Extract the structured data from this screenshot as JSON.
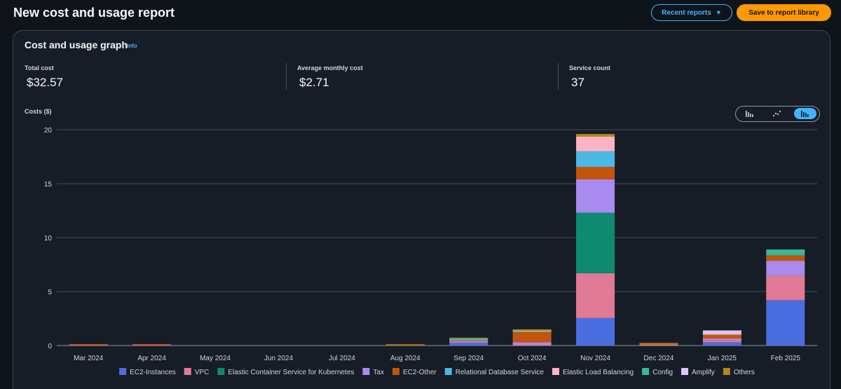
{
  "header": {
    "title": "New cost and usage report",
    "recent_reports_label": "Recent reports",
    "save_label": "Save to report library"
  },
  "card": {
    "title": "Cost and usage graph",
    "info_label": "Info",
    "metrics": [
      {
        "label": "Total cost",
        "value": "$32.57"
      },
      {
        "label": "Average monthly cost",
        "value": "$2.71"
      },
      {
        "label": "Service count",
        "value": "37"
      }
    ],
    "costs_label": "Costs ($)",
    "view_buttons": [
      {
        "name": "bar-chart-icon",
        "active": false
      },
      {
        "name": "line-chart-icon",
        "active": false
      },
      {
        "name": "stacked-bar-chart-icon",
        "active": true
      }
    ]
  },
  "chart_data": {
    "type": "bar",
    "stacked": true,
    "title": "",
    "xlabel": "",
    "ylabel": "Costs ($)",
    "ylim": [
      0,
      20
    ],
    "yticks": [
      0,
      5,
      10,
      15,
      20
    ],
    "grid": true,
    "legend_position": "bottom",
    "categories": [
      "Mar 2024",
      "Apr 2024",
      "May 2024",
      "Jun 2024",
      "Jul 2024",
      "Aug 2024",
      "Sep 2024",
      "Oct 2024",
      "Nov 2024",
      "Dec 2024",
      "Jan 2025",
      "Feb 2025"
    ],
    "series": [
      {
        "name": "EC2-Instances",
        "color": "#4a6ee0",
        "values": [
          0,
          0,
          0,
          0,
          0,
          0,
          0.25,
          0,
          2.55,
          0,
          0.3,
          4.2
        ]
      },
      {
        "name": "VPC",
        "color": "#e07a96",
        "values": [
          0.03,
          0.03,
          0,
          0,
          0,
          0,
          0.1,
          0.1,
          4.15,
          0.08,
          0.2,
          2.3
        ]
      },
      {
        "name": "Elastic Container Service for Kubernetes",
        "color": "#0e8a70",
        "values": [
          0,
          0,
          0,
          0,
          0,
          0,
          0,
          0,
          5.6,
          0,
          0,
          0
        ]
      },
      {
        "name": "Tax",
        "color": "#a98bf0",
        "values": [
          0,
          0,
          0,
          0,
          0,
          0,
          0.08,
          0.2,
          3.1,
          0,
          0.15,
          1.35
        ]
      },
      {
        "name": "EC2-Other",
        "color": "#c4540a",
        "values": [
          0.02,
          0.02,
          0,
          0,
          0,
          0.02,
          0.05,
          0.95,
          1.15,
          0.06,
          0.35,
          0.5
        ]
      },
      {
        "name": "Relational Database Service",
        "color": "#4cb8e6",
        "values": [
          0,
          0,
          0,
          0,
          0,
          0,
          0.1,
          0,
          1.45,
          0,
          0,
          0
        ]
      },
      {
        "name": "Elastic Load Balancing",
        "color": "#ffb3c6",
        "values": [
          0,
          0,
          0,
          0,
          0,
          0,
          0,
          0,
          1.35,
          0,
          0.1,
          0
        ]
      },
      {
        "name": "Config",
        "color": "#36b89a",
        "values": [
          0,
          0,
          0,
          0,
          0,
          0,
          0.05,
          0.05,
          0,
          0,
          0,
          0.55
        ]
      },
      {
        "name": "Amplify",
        "color": "#d7c8ff",
        "values": [
          0,
          0,
          0,
          0,
          0,
          0,
          0,
          0.05,
          0,
          0,
          0.3,
          0
        ]
      },
      {
        "name": "Others",
        "color": "#b0871a",
        "values": [
          0,
          0,
          0,
          0,
          0,
          0.1,
          0.02,
          0.15,
          0.25,
          0.02,
          0,
          0
        ]
      }
    ]
  }
}
